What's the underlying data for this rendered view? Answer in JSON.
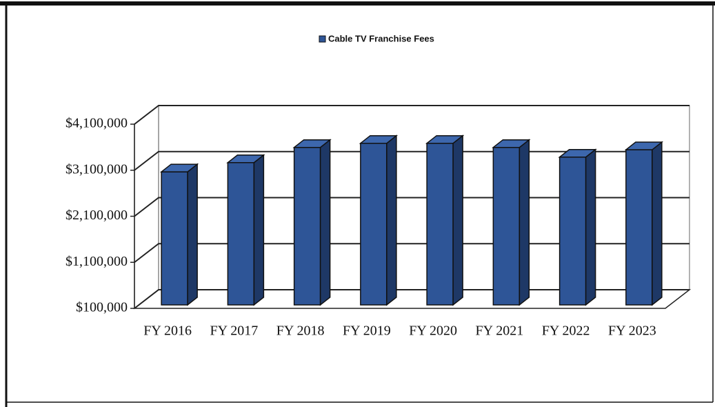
{
  "chart_data": {
    "type": "bar3d",
    "categories": [
      "FY 2016",
      "FY 2017",
      "FY 2018",
      "FY 2019",
      "FY 2020",
      "FY 2021",
      "FY 2022",
      "FY 2023"
    ],
    "series": [
      {
        "name": "Cable TV Franchise Fees",
        "color": "#2e5597",
        "values": [
          2990000,
          3190000,
          3520000,
          3610000,
          3610000,
          3520000,
          3310000,
          3470000
        ]
      }
    ],
    "ylim": [
      100000,
      4100000
    ],
    "yticks": [
      {
        "value": 100000,
        "label": "$100,000"
      },
      {
        "value": 1100000,
        "label": "$1,100,000"
      },
      {
        "value": 2100000,
        "label": "$2,100,000"
      },
      {
        "value": 3100000,
        "label": "$3,100,000"
      },
      {
        "value": 4100000,
        "label": "$4,100,000"
      }
    ],
    "grid": true,
    "legend": "top"
  }
}
